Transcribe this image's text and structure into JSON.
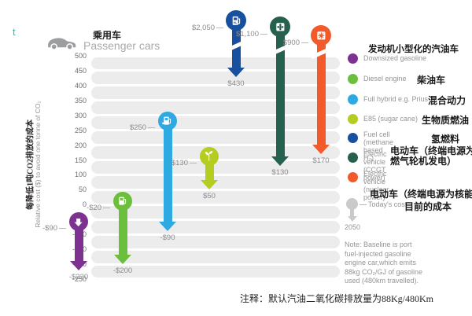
{
  "corner_mark": "t",
  "header": {
    "title_cn": "乘用车",
    "title_en": "Passenger cars"
  },
  "y_axis": {
    "label_cn": "每降低1吨CO2排放的成本",
    "label_en": "Relative cost ($) to avoid one tonne of CO₂",
    "ticks": [
      500,
      450,
      400,
      350,
      300,
      250,
      200,
      150,
      100,
      50,
      0,
      -50,
      -100,
      -150,
      -200,
      -250
    ]
  },
  "chart_data": {
    "type": "arrow-range",
    "title": "乘用车 Passenger cars",
    "ylabel": "Relative cost ($) to avoid one tonne of CO₂",
    "ylim": [
      -250,
      500
    ],
    "legend_position": "right",
    "series": [
      {
        "name": "Downsized gasoline",
        "color": "#7d3190",
        "icon": "down-arrow-icon",
        "today_cost": -90,
        "cost_2050": -220,
        "today_label": "-$90",
        "cost_2050_label": "-$220",
        "off_scale": false
      },
      {
        "name": "Diesel engine",
        "color": "#6cbf3d",
        "icon": "fuel-pump-icon",
        "today_cost": -20,
        "cost_2050": -200,
        "today_label": "-$20",
        "cost_2050_label": "-$200",
        "off_scale": false
      },
      {
        "name": "Full hybrid e.g. Prius",
        "color": "#2fa9e2",
        "icon": "hybrid-fuel-pump-icon",
        "today_cost": 250,
        "cost_2050": -90,
        "today_label": "$250",
        "cost_2050_label": "-$90",
        "off_scale": false
      },
      {
        "name": "E85 (sugar cane)",
        "color": "#b5cc20",
        "icon": "plant-icon",
        "today_cost": 130,
        "cost_2050": 50,
        "today_label": "$130",
        "cost_2050_label": "$50",
        "off_scale": false
      },
      {
        "name": "Fuel cell (methane based H₂)",
        "color": "#17509e",
        "icon": "h2-fuel-pump-icon",
        "today_cost": 2050,
        "cost_2050": 430,
        "today_label": "$2,050",
        "cost_2050_label": "$430",
        "off_scale": true
      },
      {
        "name": "Electric vehicle (CCGT power)",
        "color": "#26614f",
        "icon": "turbine-icon",
        "today_cost": 1100,
        "cost_2050": 130,
        "today_label": "$1,100",
        "cost_2050_label": "$130",
        "off_scale": true
      },
      {
        "name": "Electric vehicle (nuclear power)",
        "color": "#f2592b",
        "icon": "atom-icon",
        "today_cost": 900,
        "cost_2050": 170,
        "today_label": "$900",
        "cost_2050_label": "$170",
        "off_scale": true
      }
    ]
  },
  "legend": {
    "header_cn": "发动机小型化的汽油车",
    "items": [
      {
        "en": "Downsized gasoline",
        "cn": "",
        "color": "#7d3190"
      },
      {
        "en": "Diesel engine",
        "cn": "柴油车",
        "color": "#6cbf3d"
      },
      {
        "en": "Full hybrid e.g. Prius",
        "cn": "混合动力",
        "color": "#2fa9e2"
      },
      {
        "en": "E85 (sugar cane)",
        "cn": "生物质燃油",
        "color": "#b5cc20"
      },
      {
        "en_line1": "Fuel cell (methane",
        "en_line2": "based H₂)",
        "cn": "氢燃料",
        "color": "#17509e"
      },
      {
        "en_line1": "Electric vehicle",
        "en_line2": "(CCGT power)",
        "cn": "电动车（终端电源为燃气轮机发电）",
        "color": "#26614f"
      },
      {
        "en_line1": "Electric vehicle",
        "en_line2": "(nuclear power)",
        "cn": "",
        "color": "#f2592b"
      }
    ],
    "footer_cn": "电动车（终端电源为核能）",
    "todays_cost": {
      "en": "Today's cost",
      "cn": "目前的成本",
      "year": "2050"
    }
  },
  "note": {
    "text": "Note: Baseline is port\nfuel-injected gasoline\nengine car,which emits\n88kg CO₂/GJ of gasoline\nused (480km travelled)."
  },
  "bottom_note": "注释：默认汽油二氧化碳排放量为88Kg/480Km"
}
